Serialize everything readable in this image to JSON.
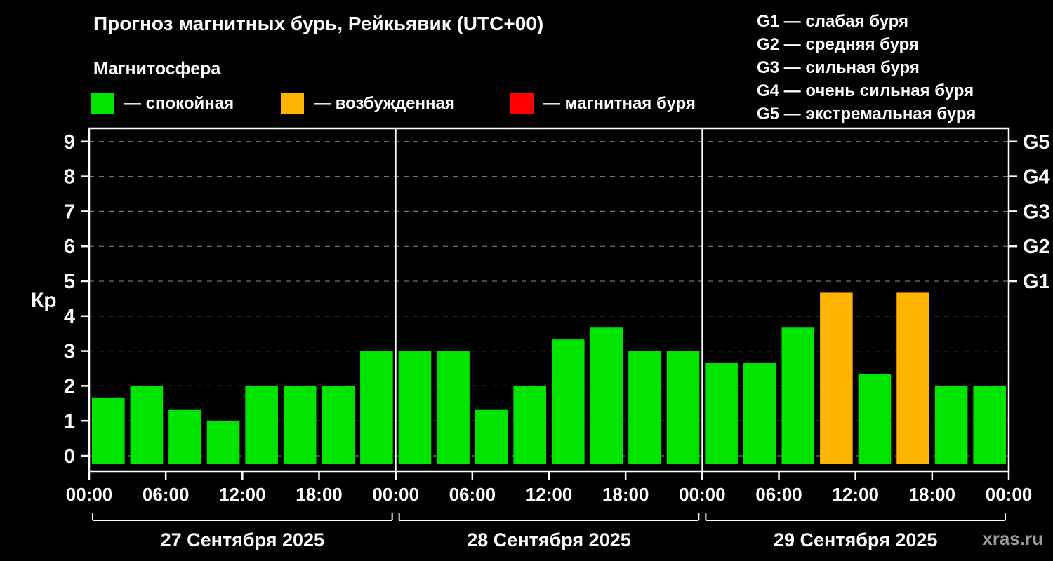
{
  "title": "Прогноз магнитных бурь, Рейкьявик (UTC+00)",
  "subtitle": "Магнитосфера",
  "ylabel": "Кр",
  "watermark": "xras.ru",
  "legend": {
    "items": [
      {
        "label": "— спокойная",
        "color": "#00e400"
      },
      {
        "label": "— возбужденная",
        "color": "#ffb400"
      },
      {
        "label": "— магнитная буря",
        "color": "#ff0000"
      }
    ]
  },
  "g_legend": [
    "G1 — слабая буря",
    "G2 — средняя буря",
    "G3 — сильная буря",
    "G4 — очень сильная буря",
    "G5 — экстремальная буря"
  ],
  "chart_data": {
    "type": "bar",
    "title": "Прогноз магнитных бурь, Рейкьявик (UTC+00)",
    "ylabel": "Кр",
    "ylim": [
      0,
      9
    ],
    "yticks": [
      0,
      1,
      2,
      3,
      4,
      5,
      6,
      7,
      8,
      9
    ],
    "grid": "dashed horizontal",
    "hours_per_bar": 3,
    "right_axis": [
      {
        "kp": 5,
        "label": "G1"
      },
      {
        "kp": 6,
        "label": "G2"
      },
      {
        "kp": 7,
        "label": "G3"
      },
      {
        "kp": 8,
        "label": "G4"
      },
      {
        "kp": 9,
        "label": "G5"
      }
    ],
    "time_ticks": [
      {
        "t": 0,
        "label": "00:00"
      },
      {
        "t": 6,
        "label": "06:00"
      },
      {
        "t": 12,
        "label": "12:00"
      },
      {
        "t": 18,
        "label": "18:00"
      },
      {
        "t": 24,
        "label": "00:00"
      },
      {
        "t": 30,
        "label": "06:00"
      },
      {
        "t": 36,
        "label": "12:00"
      },
      {
        "t": 42,
        "label": "18:00"
      },
      {
        "t": 48,
        "label": "00:00"
      },
      {
        "t": 54,
        "label": "06:00"
      },
      {
        "t": 60,
        "label": "12:00"
      },
      {
        "t": 66,
        "label": "18:00"
      },
      {
        "t": 72,
        "label": "00:00"
      }
    ],
    "colors": {
      "green": "#00e400",
      "orange": "#ffb400",
      "red": "#ff0000",
      "grid": "#8a8a8a",
      "axis": "#ffffff"
    },
    "days": [
      {
        "date": "27 Сентября 2025",
        "bars": [
          {
            "v": 1.67,
            "c": "green"
          },
          {
            "v": 2.0,
            "c": "green"
          },
          {
            "v": 1.33,
            "c": "green"
          },
          {
            "v": 1.0,
            "c": "green"
          },
          {
            "v": 2.0,
            "c": "green"
          },
          {
            "v": 2.0,
            "c": "green"
          },
          {
            "v": 2.0,
            "c": "green"
          },
          {
            "v": 3.0,
            "c": "green"
          }
        ]
      },
      {
        "date": "28 Сентября 2025",
        "bars": [
          {
            "v": 3.0,
            "c": "green"
          },
          {
            "v": 3.0,
            "c": "green"
          },
          {
            "v": 1.33,
            "c": "green"
          },
          {
            "v": 2.0,
            "c": "green"
          },
          {
            "v": 3.33,
            "c": "green"
          },
          {
            "v": 3.67,
            "c": "green"
          },
          {
            "v": 3.0,
            "c": "green"
          },
          {
            "v": 3.0,
            "c": "green"
          }
        ]
      },
      {
        "date": "29 Сентября 2025",
        "bars": [
          {
            "v": 2.67,
            "c": "green"
          },
          {
            "v": 2.67,
            "c": "green"
          },
          {
            "v": 3.67,
            "c": "green"
          },
          {
            "v": 4.67,
            "c": "orange"
          },
          {
            "v": 2.33,
            "c": "green"
          },
          {
            "v": 4.67,
            "c": "orange"
          },
          {
            "v": 2.0,
            "c": "green"
          },
          {
            "v": 2.0,
            "c": "green"
          }
        ]
      }
    ]
  }
}
